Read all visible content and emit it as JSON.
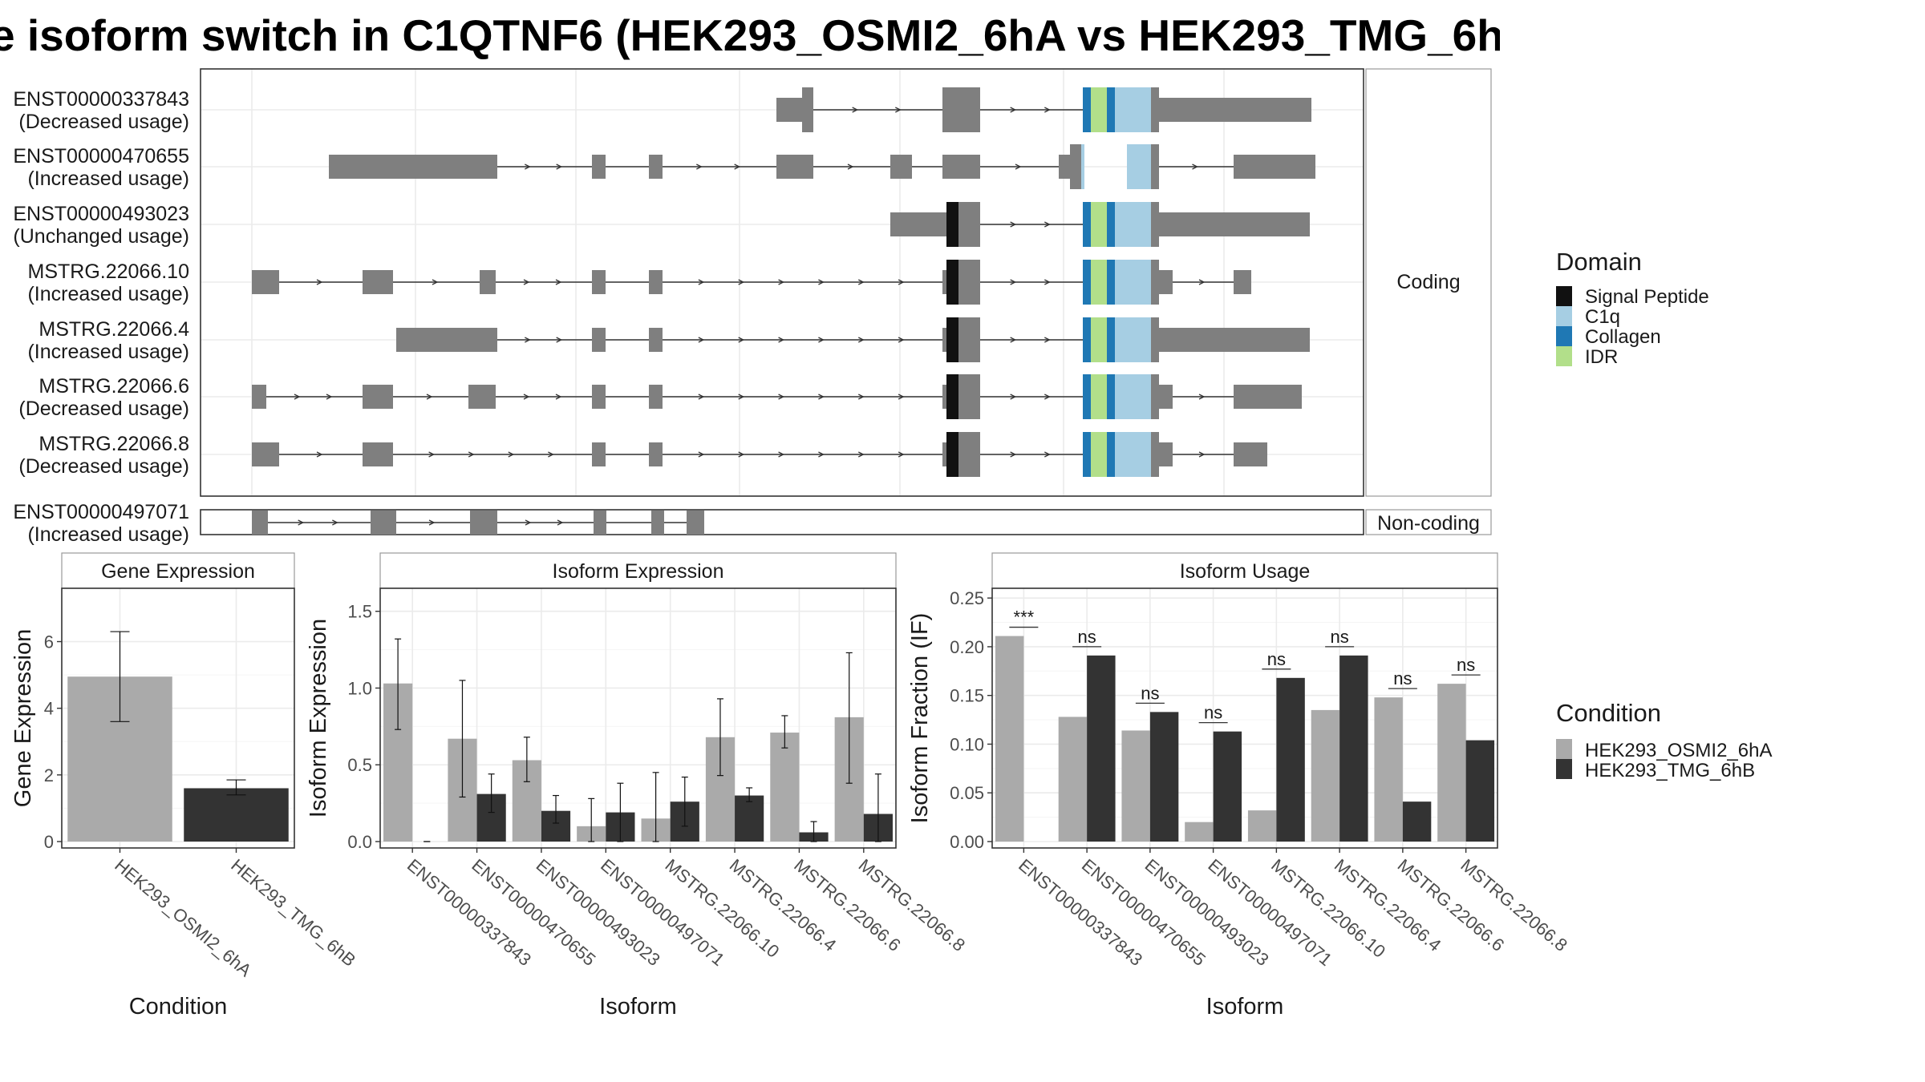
{
  "title": "e isoform switch in C1QTNF6 (HEK293_OSMI2_6hA vs HEK293_TMG_6h",
  "colors": {
    "exon": "#7f7f7f",
    "signal_peptide": "#111111",
    "c1q": "#a6cee3",
    "collagen": "#1f78b4",
    "idr": "#b2df8a",
    "cond_a": "#aaaaaa",
    "cond_b": "#333333"
  },
  "structure": {
    "strip_coding": "Coding",
    "strip_noncoding": "Non-coding",
    "coding_isoforms": [
      {
        "name": "ENST00000337843",
        "usage": "(Decreased usage)"
      },
      {
        "name": "ENST00000470655",
        "usage": "(Increased usage)"
      },
      {
        "name": "ENST00000493023",
        "usage": "(Unchanged usage)"
      },
      {
        "name": "MSTRG.22066.10",
        "usage": "(Increased usage)"
      },
      {
        "name": "MSTRG.22066.4",
        "usage": "(Increased usage)"
      },
      {
        "name": "MSTRG.22066.6",
        "usage": "(Decreased usage)"
      },
      {
        "name": "MSTRG.22066.8",
        "usage": "(Decreased usage)"
      }
    ],
    "noncoding_isoforms": [
      {
        "name": "ENST00000497071",
        "usage": "(Increased usage)"
      }
    ]
  },
  "legend_domain": {
    "title": "Domain",
    "items": [
      "Signal Peptide",
      "C1q",
      "Collagen",
      "IDR"
    ]
  },
  "legend_condition": {
    "title": "Condition",
    "items": [
      "HEK293_OSMI2_6hA",
      "HEK293_TMG_6hB"
    ]
  },
  "chart_data": [
    {
      "type": "bar",
      "title": "Gene Expression",
      "xlabel": "Condition",
      "ylabel": "Gene Expression",
      "ylim": [
        0,
        7.6
      ],
      "yticks": [
        0,
        2,
        4,
        6
      ],
      "categories": [
        "HEK293_OSMI2_6hA",
        "HEK293_TMG_6hB"
      ],
      "values": [
        4.95,
        1.6
      ],
      "errors": [
        [
          3.6,
          6.3
        ],
        [
          1.4,
          1.85
        ]
      ]
    },
    {
      "type": "bar",
      "title": "Isoform Expression",
      "xlabel": "Isoform",
      "ylabel": "Isoform Expression",
      "ylim": [
        0,
        1.65
      ],
      "yticks": [
        0.0,
        0.5,
        1.0,
        1.5
      ],
      "categories": [
        "ENST00000337843",
        "ENST00000470655",
        "ENST00000493023",
        "ENST00000497071",
        "MSTRG.22066.10",
        "MSTRG.22066.4",
        "MSTRG.22066.6",
        "MSTRG.22066.8"
      ],
      "series": [
        {
          "name": "HEK293_OSMI2_6hA",
          "values": [
            1.03,
            0.67,
            0.53,
            0.1,
            0.15,
            0.68,
            0.71,
            0.81
          ],
          "errors": [
            [
              0.73,
              1.32
            ],
            [
              0.29,
              1.05
            ],
            [
              0.39,
              0.68
            ],
            [
              0.0,
              0.28
            ],
            [
              0.0,
              0.45
            ],
            [
              0.43,
              0.93
            ],
            [
              0.61,
              0.82
            ],
            [
              0.38,
              1.23
            ]
          ]
        },
        {
          "name": "HEK293_TMG_6hB",
          "values": [
            0.0,
            0.31,
            0.2,
            0.19,
            0.26,
            0.3,
            0.06,
            0.18
          ],
          "errors": [
            [
              0.0,
              0.0
            ],
            [
              0.19,
              0.44
            ],
            [
              0.12,
              0.3
            ],
            [
              0.0,
              0.38
            ],
            [
              0.1,
              0.42
            ],
            [
              0.26,
              0.35
            ],
            [
              0.0,
              0.13
            ],
            [
              0.0,
              0.44
            ]
          ]
        }
      ]
    },
    {
      "type": "bar",
      "title": "Isoform Usage",
      "xlabel": "Isoform",
      "ylabel": "Isoform Fraction (IF)",
      "ylim": [
        0,
        0.26
      ],
      "yticks": [
        0.0,
        0.05,
        0.1,
        0.15,
        0.2,
        0.25
      ],
      "categories": [
        "ENST00000337843",
        "ENST00000470655",
        "ENST00000493023",
        "ENST00000497071",
        "MSTRG.22066.10",
        "MSTRG.22066.4",
        "MSTRG.22066.6",
        "MSTRG.22066.8"
      ],
      "series": [
        {
          "name": "HEK293_OSMI2_6hA",
          "values": [
            0.211,
            0.128,
            0.114,
            0.02,
            0.032,
            0.135,
            0.148,
            0.162
          ]
        },
        {
          "name": "HEK293_TMG_6hB",
          "values": [
            0.0,
            0.191,
            0.133,
            0.113,
            0.168,
            0.191,
            0.041,
            0.104
          ]
        }
      ],
      "annotations": [
        "***",
        "ns",
        "ns",
        "ns",
        "ns",
        "ns",
        "ns",
        "ns"
      ]
    }
  ]
}
